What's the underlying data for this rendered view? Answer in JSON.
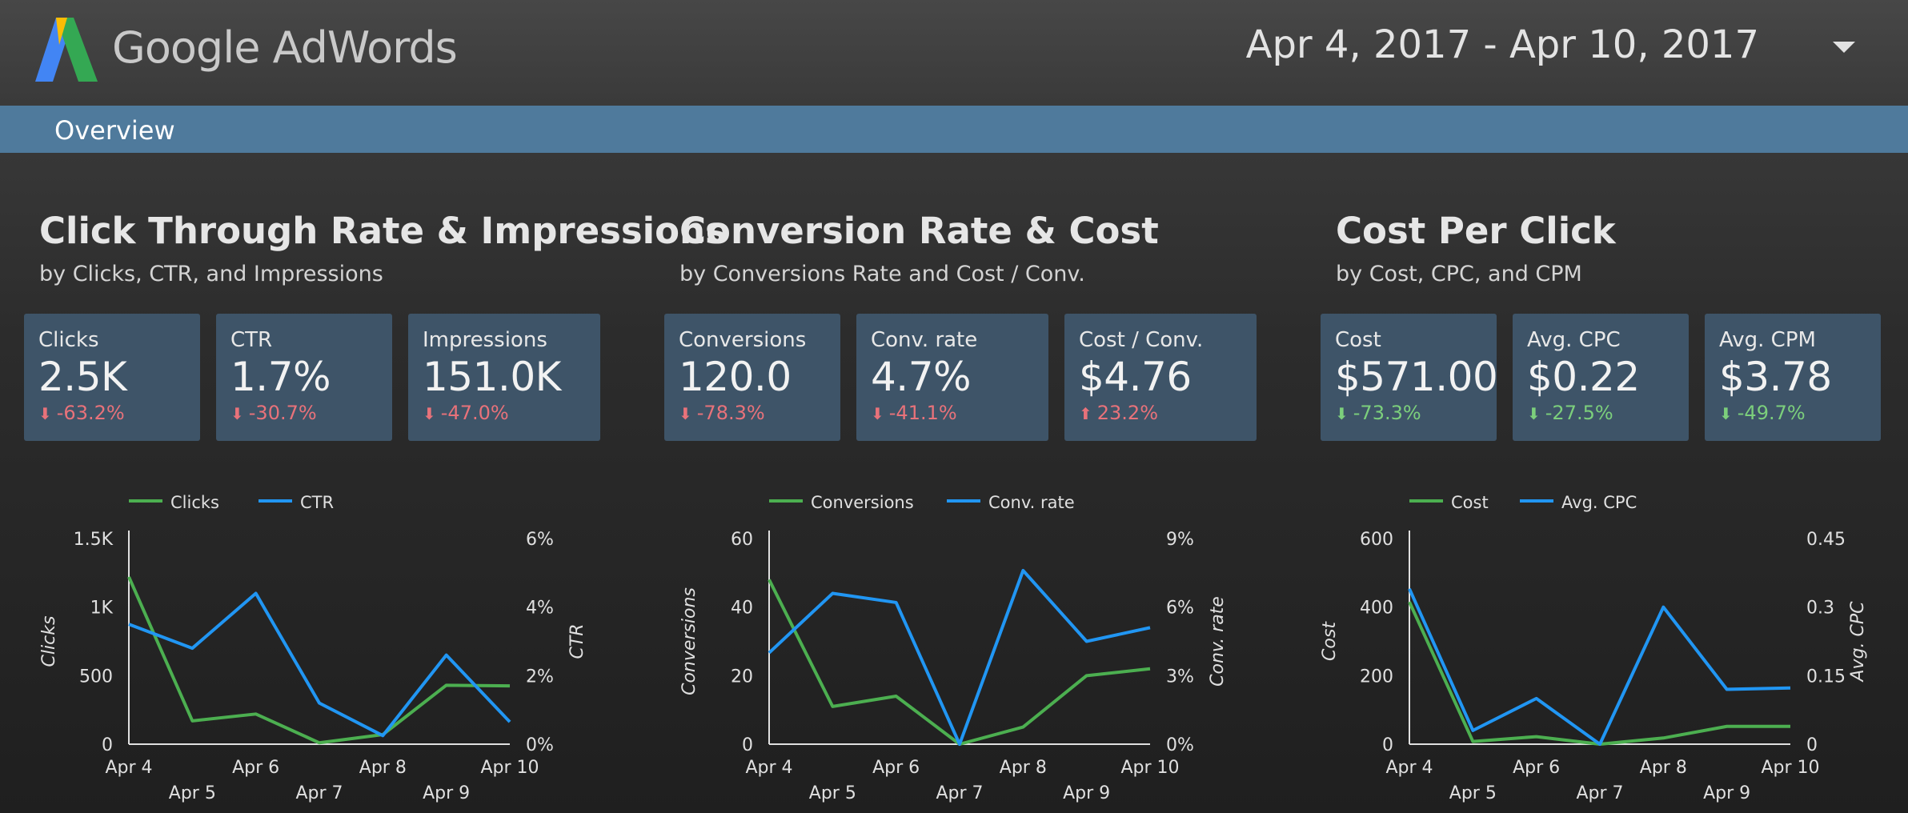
{
  "header": {
    "brand": "Google AdWords",
    "date_range": "Apr 4, 2017 - Apr 10, 2017",
    "logo_icon": "adwords-logo-icon",
    "dropdown_icon": "caret-down-icon"
  },
  "nav": {
    "tab_label": "Overview",
    "bar_color": "#4f7a9c"
  },
  "colors": {
    "series1": "#4caf50",
    "series2": "#2196f3",
    "negative": "#e8727a",
    "positive": "#7ccf7c",
    "card_bg": "#3e5468"
  },
  "sections": [
    {
      "title": "Click Through Rate & Impressions",
      "subtitle": "by Clicks, CTR, and Impressions",
      "cards": [
        {
          "label": "Clicks",
          "value": "2.5K",
          "change": "-63.2%",
          "direction": "down",
          "sentiment": "negative"
        },
        {
          "label": "CTR",
          "value": "1.7%",
          "change": "-30.7%",
          "direction": "down",
          "sentiment": "negative"
        },
        {
          "label": "Impressions",
          "value": "151.0K",
          "change": "-47.0%",
          "direction": "down",
          "sentiment": "negative"
        }
      ]
    },
    {
      "title": "Conversion Rate & Cost",
      "subtitle": "by Conversions Rate and Cost / Conv.",
      "cards": [
        {
          "label": "Conversions",
          "value": "120.0",
          "change": "-78.3%",
          "direction": "down",
          "sentiment": "negative"
        },
        {
          "label": "Conv. rate",
          "value": "4.7%",
          "change": "-41.1%",
          "direction": "down",
          "sentiment": "negative"
        },
        {
          "label": "Cost / Conv.",
          "value": "$4.76",
          "change": "23.2%",
          "direction": "up",
          "sentiment": "negative"
        }
      ]
    },
    {
      "title": "Cost Per Click",
      "subtitle": "by Cost, CPC, and CPM",
      "cards": [
        {
          "label": "Cost",
          "value": "$571.00",
          "change": "-73.3%",
          "direction": "down",
          "sentiment": "positive"
        },
        {
          "label": "Avg. CPC",
          "value": "$0.22",
          "change": "-27.5%",
          "direction": "down",
          "sentiment": "positive"
        },
        {
          "label": "Avg. CPM",
          "value": "$3.78",
          "change": "-49.7%",
          "direction": "down",
          "sentiment": "positive"
        }
      ]
    }
  ],
  "chart_data": [
    {
      "type": "line",
      "x": [
        "Apr 4",
        "Apr 5",
        "Apr 6",
        "Apr 7",
        "Apr 8",
        "Apr 9",
        "Apr 10"
      ],
      "series": [
        {
          "name": "Clicks",
          "axis": "left",
          "values": [
            1220,
            170,
            220,
            10,
            70,
            430,
            425
          ]
        },
        {
          "name": "CTR",
          "axis": "right",
          "values": [
            3.5,
            2.8,
            4.4,
            1.2,
            0.25,
            2.6,
            0.65
          ]
        }
      ],
      "ylabel": "Clicks",
      "y2label": "CTR",
      "ylim": [
        0,
        1500
      ],
      "y2lim": [
        0,
        6
      ],
      "yticks": [
        "0",
        "500",
        "1K",
        "1.5K"
      ],
      "y2ticks": [
        "0%",
        "2%",
        "4%",
        "6%"
      ],
      "legend": "top-left",
      "grid": false
    },
    {
      "type": "line",
      "x": [
        "Apr 4",
        "Apr 5",
        "Apr 6",
        "Apr 7",
        "Apr 8",
        "Apr 9",
        "Apr 10"
      ],
      "series": [
        {
          "name": "Conversions",
          "axis": "left",
          "values": [
            48,
            11,
            14,
            0,
            5,
            20,
            22
          ]
        },
        {
          "name": "Conv. rate",
          "axis": "right",
          "values": [
            4.0,
            6.6,
            6.2,
            0,
            7.6,
            4.5,
            5.1
          ]
        }
      ],
      "ylabel": "Conversions",
      "y2label": "Conv. rate",
      "ylim": [
        0,
        60
      ],
      "y2lim": [
        0,
        9
      ],
      "yticks": [
        "0",
        "20",
        "40",
        "60"
      ],
      "y2ticks": [
        "0%",
        "3%",
        "6%",
        "9%"
      ],
      "legend": "top-left",
      "grid": false
    },
    {
      "type": "line",
      "x": [
        "Apr 4",
        "Apr 5",
        "Apr 6",
        "Apr 7",
        "Apr 8",
        "Apr 9",
        "Apr 10"
      ],
      "series": [
        {
          "name": "Cost",
          "axis": "left",
          "values": [
            415,
            8,
            22,
            0,
            18,
            52,
            52
          ]
        },
        {
          "name": "Avg. CPC",
          "axis": "right",
          "values": [
            0.34,
            0.03,
            0.1,
            0,
            0.3,
            0.12,
            0.123
          ]
        }
      ],
      "ylabel": "Cost",
      "y2label": "Avg. CPC",
      "ylim": [
        0,
        600
      ],
      "y2lim": [
        0,
        0.45
      ],
      "yticks": [
        "0",
        "200",
        "400",
        "600"
      ],
      "y2ticks": [
        "0",
        "0.15",
        "0.3",
        "0.45"
      ],
      "legend": "top-left",
      "grid": false
    }
  ]
}
